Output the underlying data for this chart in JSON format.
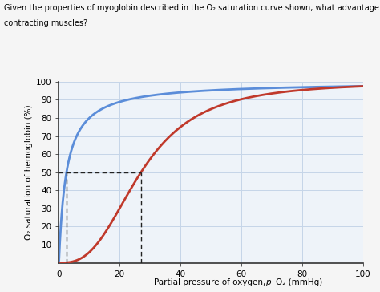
{
  "title_line1": "Given the properties of myoglobin described in the O₂ saturation curve shown, what advantage does myoglobin confer to",
  "title_line2": "contracting muscles?",
  "xlabel": "Partial pressure of oxygen, ρO₂ (mmHg)",
  "ylabel": "O₂ saturation of hemoglobin (%)",
  "xlim": [
    0,
    100
  ],
  "ylim": [
    0,
    100
  ],
  "xticks": [
    0,
    20,
    40,
    60,
    80,
    100
  ],
  "yticks": [
    10,
    20,
    30,
    40,
    50,
    60,
    70,
    80,
    90,
    100
  ],
  "myoglobin_color": "#5B8DD9",
  "hemoglobin_color": "#C0392B",
  "dashed_color": "#222222",
  "background_color": "#EEF3F9",
  "grid_color": "#C5D5E8",
  "myoglobin_p50": 2.5,
  "hemoglobin_p50": 27.0,
  "dashed_y": 50,
  "myoglobin_n": 1.0,
  "hemoglobin_n": 2.8,
  "title_fontsize": 7.0,
  "axis_label_fontsize": 7.5,
  "tick_fontsize": 7.5
}
